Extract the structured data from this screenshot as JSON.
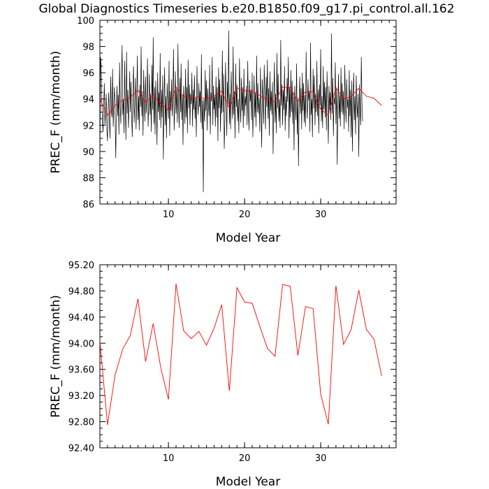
{
  "title": "Global Diagnostics Timeseries b.e20.B1850.f09_g17.pi_control.all.162",
  "colors": {
    "monthly_line": "#000000",
    "annual_line": "#ff0000",
    "axes": "#000000"
  },
  "chart_data": [
    {
      "type": "line",
      "xlabel": "Model Year",
      "ylabel": "PREC_F (mm/month)",
      "xlim": [
        1,
        39.9
      ],
      "ylim": [
        86,
        100
      ],
      "x_ticks": [
        10,
        20,
        30
      ],
      "y_ticks": [
        86,
        88,
        90,
        92,
        94,
        96,
        98,
        100
      ],
      "y_tick_labels": [
        "86",
        "88",
        "90",
        "92",
        "94",
        "96",
        "98",
        "100"
      ],
      "series": [
        {
          "role": "monthly",
          "x_start": 1.0,
          "x_step": 0.08333,
          "values": [
            88.5,
            97.2,
            96.5,
            94.0,
            92.3,
            91.5,
            93.6,
            95.2,
            92.0,
            93.0,
            94.4,
            91.6,
            90.8,
            93.2,
            94.5,
            92.4,
            91.0,
            95.7,
            93.1,
            92.6,
            96.3,
            91.9,
            93.8,
            94.9,
            92.5,
            89.5,
            93.4,
            95.0,
            92.7,
            94.3,
            91.3,
            96.8,
            93.5,
            92.1,
            95.4,
            98.1,
            92.8,
            94.0,
            91.4,
            96.9,
            93.3,
            90.9,
            97.6,
            92.9,
            94.7,
            91.8,
            93.6,
            96.1,
            93.0,
            95.3,
            92.6,
            91.1,
            94.8,
            96.5,
            92.2,
            93.7,
            95.6,
            91.7,
            93.9,
            97.3,
            92.4,
            94.2,
            91.6,
            95.1,
            93.4,
            98.0,
            92.7,
            94.6,
            91.2,
            96.2,
            93.8,
            92.3,
            95.7,
            92.9,
            94.1,
            97.1,
            91.9,
            93.5,
            95.9,
            92.8,
            94.4,
            91.5,
            96.6,
            93.2,
            98.7,
            92.1,
            94.9,
            91.3,
            95.4,
            93.6,
            90.5,
            96.0,
            93.0,
            94.5,
            92.4,
            97.5,
            91.8,
            94.7,
            92.6,
            95.8,
            89.4,
            93.7,
            96.4,
            92.0,
            94.2,
            91.0,
            95.2,
            93.9,
            92.5,
            96.9,
            91.2,
            94.6,
            93.1,
            95.5,
            92.7,
            94.0,
            97.8,
            91.6,
            93.4,
            96.1,
            92.9,
            94.8,
            92.2,
            98.2,
            93.5,
            91.8,
            95.6,
            93.0,
            96.7,
            92.4,
            94.3,
            90.5,
            95.0,
            93.8,
            92.1,
            96.3,
            92.6,
            94.9,
            91.4,
            97.0,
            93.3,
            95.1,
            92.0,
            94.4,
            93.6,
            96.0,
            91.9,
            94.7,
            93.2,
            95.8,
            92.5,
            94.1,
            91.1,
            96.5,
            93.7,
            92.8,
            95.2,
            93.4,
            94.6,
            92.2,
            97.4,
            91.7,
            93.9,
            86.9,
            94.0,
            92.3,
            96.2,
            93.1,
            95.4,
            91.6,
            94.8,
            93.5,
            92.7,
            96.6,
            91.3,
            94.5,
            93.8,
            97.2,
            92.0,
            95.0,
            93.2,
            94.2,
            91.9,
            95.7,
            92.6,
            94.9,
            90.8,
            96.4,
            93.3,
            95.5,
            91.5,
            94.3,
            92.9,
            97.7,
            93.0,
            95.9,
            90.2,
            92.4,
            96.8,
            94.1,
            91.2,
            95.3,
            93.6,
            99.2,
            92.1,
            94.4,
            91.7,
            96.1,
            93.9,
            92.5,
            98.0,
            92.8,
            94.6,
            91.0,
            96.7,
            93.4,
            95.1,
            92.3,
            94.0,
            91.4,
            97.1,
            93.7,
            92.2,
            95.6,
            93.1,
            94.9,
            91.8,
            96.3,
            92.7,
            94.2,
            93.5,
            95.0,
            92.0,
            96.9,
            93.3,
            91.6,
            95.4,
            93.8,
            94.7,
            92.4,
            96.0,
            91.1,
            93.2,
            95.8,
            92.6,
            94.5,
            91.9,
            97.3,
            93.0,
            95.2,
            92.9,
            94.1,
            91.5,
            96.4,
            93.6,
            90.3,
            95.5,
            93.9,
            92.1,
            96.6,
            94.3,
            91.7,
            95.7,
            93.4,
            97.0,
            92.5,
            94.8,
            91.2,
            96.1,
            93.1,
            94.6,
            92.8,
            95.3,
            89.8,
            93.7,
            96.8,
            92.2,
            94.4,
            91.4,
            97.5,
            93.3,
            95.9,
            92.3,
            94.0,
            91.8,
            98.5,
            93.5,
            95.1,
            92.0,
            94.7,
            93.2,
            96.5,
            91.6,
            94.2,
            92.7,
            95.6,
            93.8,
            97.2,
            91.0,
            94.9,
            92.6,
            96.2,
            93.0,
            95.4,
            92.1,
            94.5,
            90.1,
            95.0,
            93.4,
            92.4,
            96.7,
            91.3,
            94.1,
            88.9,
            93.6,
            95.7,
            92.9,
            94.8,
            91.7,
            96.0,
            93.1,
            95.2,
            92.2,
            94.3,
            91.9,
            97.6,
            93.7,
            92.5,
            95.5,
            93.9,
            94.6,
            91.5,
            98.3,
            92.8,
            94.0,
            91.1,
            96.3,
            93.3,
            95.8,
            92.0,
            94.4,
            93.0,
            96.9,
            92.7,
            94.7,
            91.4,
            95.1,
            93.5,
            97.8,
            92.3,
            94.2,
            91.8,
            96.5,
            93.2,
            95.3,
            92.6,
            94.9,
            91.6,
            96.1,
            93.8,
            90.6,
            95.0,
            93.1,
            94.5,
            92.4,
            99.0,
            92.9,
            95.6,
            91.2,
            94.1,
            93.6,
            96.8,
            92.1,
            94.8,
            89.0,
            93.4,
            95.9,
            92.5,
            94.3,
            91.9,
            96.4,
            93.0,
            95.2,
            92.8,
            94.6,
            91.7,
            96.6,
            93.7,
            92.2,
            95.5,
            93.3,
            94.0,
            91.5,
            96.2,
            92.7,
            94.7,
            91.1,
            95.4,
            90.0,
            93.9,
            96.0,
            92.4,
            94.2,
            91.3,
            95.8,
            93.5,
            92.6,
            94.4,
            89.6,
            95.1,
            93.1,
            92.0,
            97.2,
            93.8,
            92.3
          ]
        },
        {
          "role": "annual",
          "x_start": 1.0,
          "x_step": 1.0,
          "values": [
            94.03,
            92.75,
            93.52,
            93.91,
            94.12,
            94.68,
            93.72,
            94.3,
            93.62,
            93.14,
            94.91,
            94.19,
            94.07,
            94.18,
            93.97,
            94.23,
            94.59,
            93.27,
            94.85,
            94.63,
            94.61,
            94.26,
            93.92,
            93.8,
            94.9,
            94.87,
            93.81,
            94.56,
            94.53,
            93.22,
            92.76,
            94.88,
            93.98,
            94.21,
            94.81,
            94.21,
            94.06,
            93.5
          ]
        }
      ]
    },
    {
      "type": "line",
      "xlabel": "Model Year",
      "ylabel": "PREC_F (mm/month)",
      "xlim": [
        1,
        39.9
      ],
      "ylim": [
        92.4,
        95.2
      ],
      "x_ticks": [
        10,
        20,
        30
      ],
      "y_ticks": [
        92.4,
        92.8,
        93.2,
        93.6,
        94.0,
        94.4,
        94.8,
        95.2
      ],
      "y_tick_labels": [
        "92.40",
        "92.80",
        "93.20",
        "93.60",
        "94.00",
        "94.40",
        "94.80",
        "95.20"
      ],
      "series": [
        {
          "role": "annual",
          "x_start": 1.0,
          "x_step": 1.0,
          "values": [
            94.03,
            92.75,
            93.52,
            93.91,
            94.12,
            94.68,
            93.72,
            94.3,
            93.62,
            93.14,
            94.91,
            94.19,
            94.07,
            94.18,
            93.97,
            94.23,
            94.59,
            93.27,
            94.85,
            94.63,
            94.61,
            94.26,
            93.92,
            93.8,
            94.9,
            94.87,
            93.81,
            94.56,
            94.53,
            93.22,
            92.76,
            94.88,
            93.98,
            94.21,
            94.81,
            94.21,
            94.06,
            93.5
          ]
        }
      ]
    }
  ]
}
